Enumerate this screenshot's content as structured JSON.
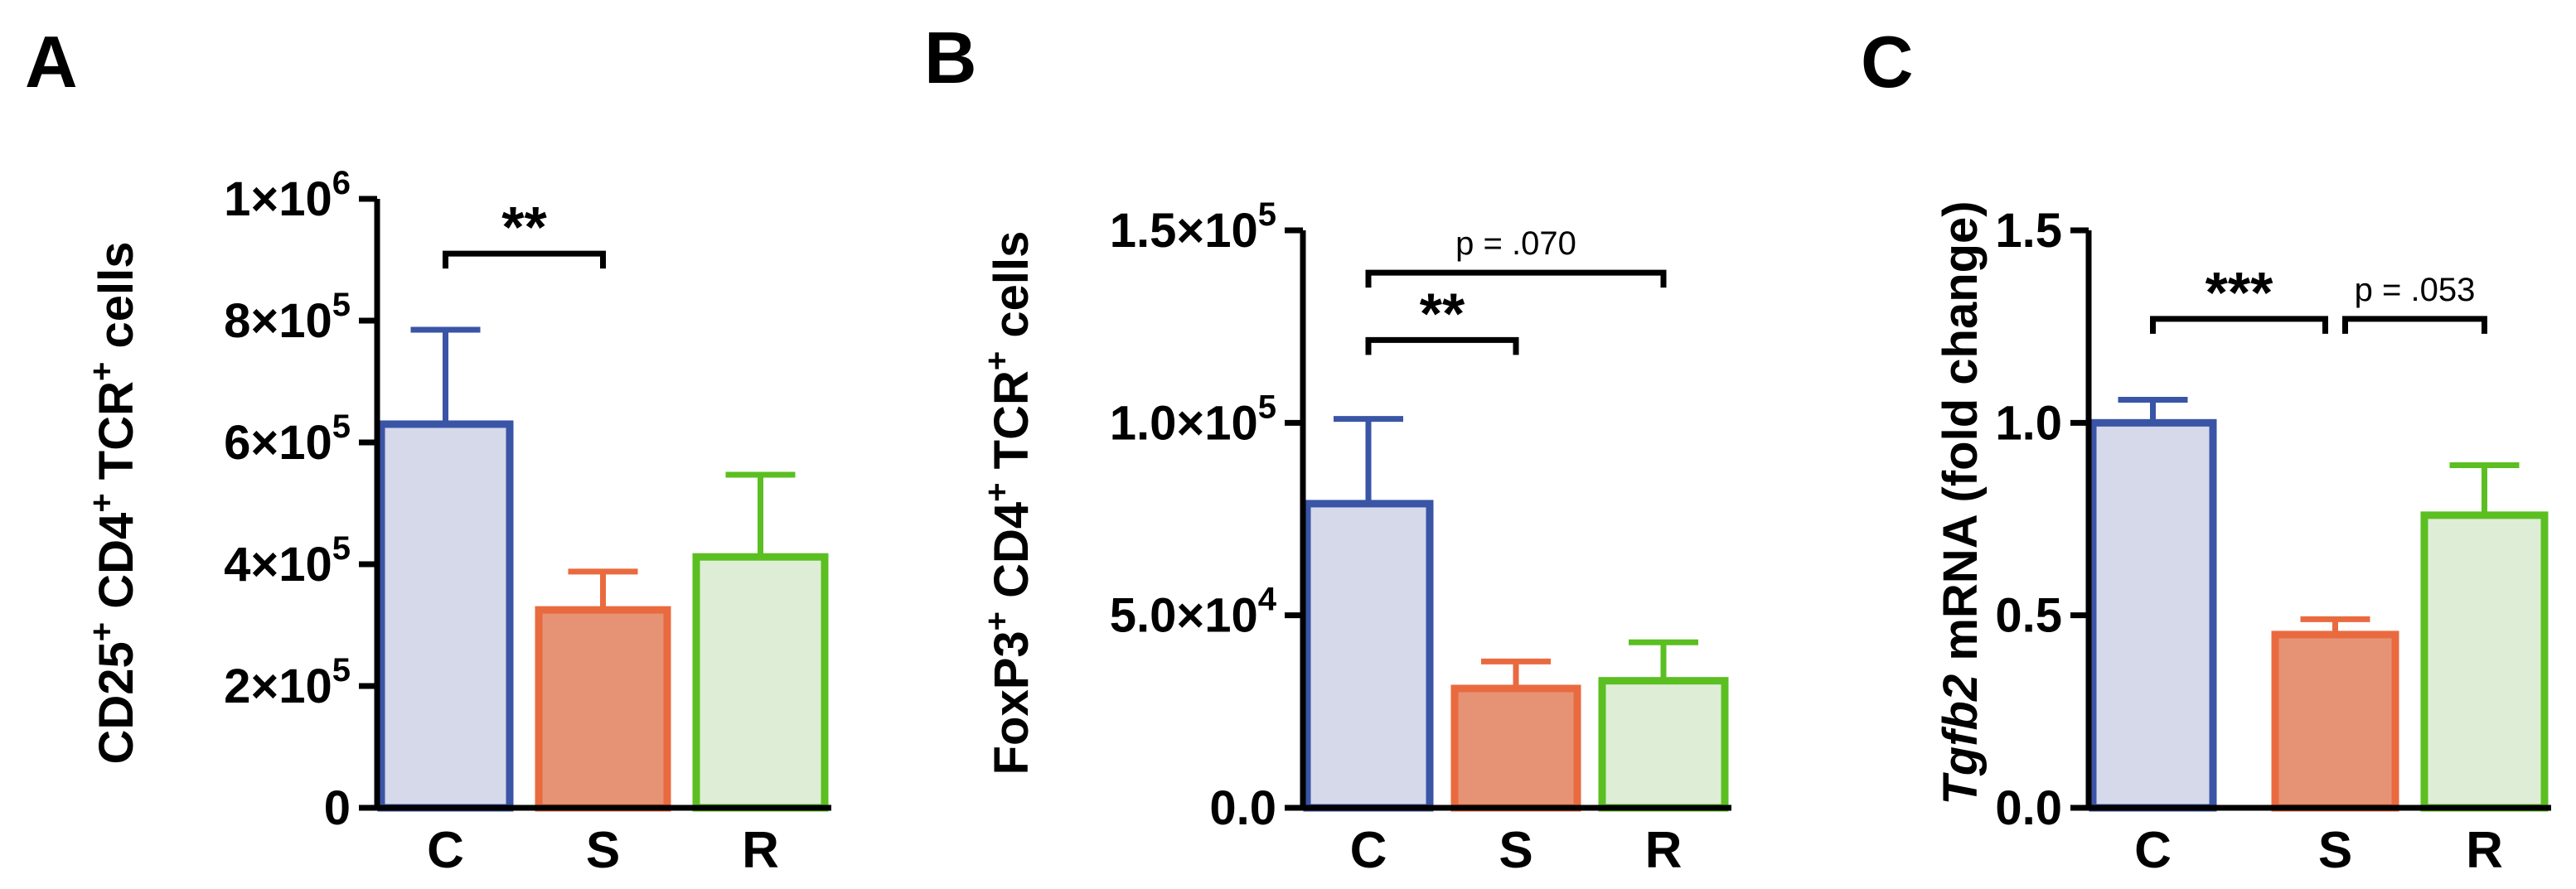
{
  "chart_data": [
    {
      "type": "bar",
      "panel_label": "A",
      "ylabel": [
        "CD25",
        "+",
        " CD4",
        "+",
        " TCR",
        "+",
        " cells"
      ],
      "categories": [
        "C",
        "S",
        "R"
      ],
      "values": [
        630000,
        325000,
        412000
      ],
      "errors": [
        155000,
        63000,
        135000
      ],
      "ylim": [
        0,
        1000000
      ],
      "yticks": [
        0,
        200000,
        400000,
        600000,
        800000,
        1000000
      ],
      "ytick_labels": [
        {
          "base": "0",
          "exp": ""
        },
        {
          "base": "2×10",
          "exp": "5"
        },
        {
          "base": "4×10",
          "exp": "5"
        },
        {
          "base": "6×10",
          "exp": "5"
        },
        {
          "base": "8×10",
          "exp": "5"
        },
        {
          "base": "1×10",
          "exp": "6"
        }
      ],
      "annotations": [
        {
          "text": "**",
          "from": 0,
          "to": 1,
          "y": 910000,
          "size": "big"
        }
      ]
    },
    {
      "type": "bar",
      "panel_label": "B",
      "ylabel": [
        "FoxP3",
        "+",
        " CD4",
        "+",
        " TCR",
        "+",
        " cells"
      ],
      "categories": [
        "C",
        "S",
        "R"
      ],
      "values": [
        79000,
        31000,
        33000
      ],
      "errors": [
        22000,
        7000,
        10000
      ],
      "ylim": [
        0,
        150000
      ],
      "yticks": [
        0,
        50000,
        100000,
        150000
      ],
      "ytick_labels": [
        {
          "base": "0.0",
          "exp": ""
        },
        {
          "base": "5.0×10",
          "exp": "4"
        },
        {
          "base": "1.0×10",
          "exp": "5"
        },
        {
          "base": "1.5×10",
          "exp": "5"
        }
      ],
      "annotations": [
        {
          "text": "**",
          "from": 0,
          "to": 1,
          "y": 121500,
          "size": "big"
        },
        {
          "text": "p = .070",
          "from": 0,
          "to": 2,
          "y": 139000,
          "size": "small"
        }
      ]
    },
    {
      "type": "bar",
      "panel_label": "C",
      "ylabel": [
        "Tgfb2",
        " mRNA (fold change)"
      ],
      "categories": [
        "C",
        "S",
        "R"
      ],
      "values": [
        1.0,
        0.45,
        0.76
      ],
      "errors": [
        0.06,
        0.04,
        0.13
      ],
      "ylim": [
        0,
        1.5
      ],
      "yticks": [
        0,
        0.5,
        1.0,
        1.5
      ],
      "ytick_labels": [
        {
          "base": "0.0",
          "exp": ""
        },
        {
          "base": "0.5",
          "exp": ""
        },
        {
          "base": "1.0",
          "exp": ""
        },
        {
          "base": "1.5",
          "exp": ""
        }
      ],
      "annotations": [
        {
          "text": "***",
          "from": 0,
          "to": 1,
          "y": 1.27,
          "size": "big"
        },
        {
          "text": "p = .053",
          "from": 1,
          "to": 2,
          "y": 1.27,
          "size": "small"
        }
      ]
    }
  ],
  "colors": {
    "C": {
      "stroke": "#3a55a6",
      "fill": "#d6d9ea"
    },
    "S": {
      "stroke": "#ea6a3f",
      "fill": "#e59374"
    },
    "R": {
      "stroke": "#5bbf22",
      "fill": "#deeed6"
    }
  }
}
